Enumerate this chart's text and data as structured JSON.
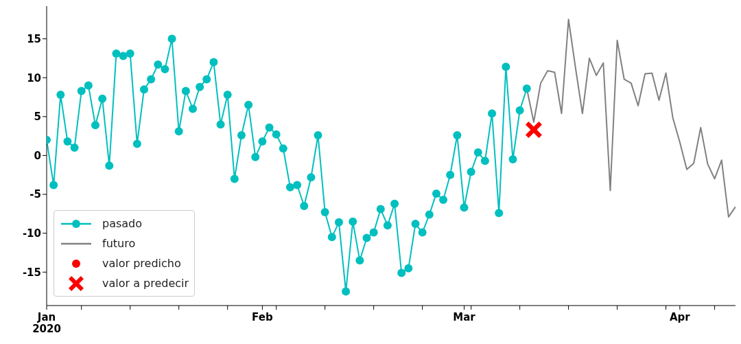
{
  "chart_data": {
    "type": "line",
    "xlim": [
      "2020-01-01",
      "2020-04-09"
    ],
    "xticks": [
      {
        "value": "2020-01-01",
        "label": "Jan\n2020"
      },
      {
        "value": "2020-01-06",
        "label": null
      },
      {
        "value": "2020-01-13",
        "label": null
      },
      {
        "value": "2020-01-20",
        "label": null
      },
      {
        "value": "2020-01-27",
        "label": null
      },
      {
        "value": "2020-02-01",
        "label": "Feb"
      },
      {
        "value": "2020-02-03",
        "label": null
      },
      {
        "value": "2020-02-10",
        "label": null
      },
      {
        "value": "2020-02-17",
        "label": null
      },
      {
        "value": "2020-02-24",
        "label": null
      },
      {
        "value": "2020-03-01",
        "label": "Mar"
      },
      {
        "value": "2020-03-02",
        "label": null
      },
      {
        "value": "2020-03-09",
        "label": null
      },
      {
        "value": "2020-03-16",
        "label": null
      },
      {
        "value": "2020-03-23",
        "label": null
      },
      {
        "value": "2020-03-30",
        "label": null
      },
      {
        "value": "2020-04-01",
        "label": "Apr"
      },
      {
        "value": "2020-04-06",
        "label": null
      }
    ],
    "ylim": [
      -19.3,
      19.2
    ],
    "yticks": [
      -15,
      -10,
      -5,
      0,
      5,
      10,
      15
    ],
    "grid": false,
    "legend": "bottom left",
    "series": [
      {
        "name": "pasado",
        "type": "line",
        "marker": "circle",
        "color": "#00bfbf",
        "x": [
          "2020-01-01",
          "2020-01-02",
          "2020-01-03",
          "2020-01-04",
          "2020-01-05",
          "2020-01-06",
          "2020-01-07",
          "2020-01-08",
          "2020-01-09",
          "2020-01-10",
          "2020-01-11",
          "2020-01-12",
          "2020-01-13",
          "2020-01-14",
          "2020-01-15",
          "2020-01-16",
          "2020-01-17",
          "2020-01-18",
          "2020-01-19",
          "2020-01-20",
          "2020-01-21",
          "2020-01-22",
          "2020-01-23",
          "2020-01-24",
          "2020-01-25",
          "2020-01-26",
          "2020-01-27",
          "2020-01-28",
          "2020-01-29",
          "2020-01-30",
          "2020-01-31",
          "2020-02-01",
          "2020-02-02",
          "2020-02-03",
          "2020-02-04",
          "2020-02-05",
          "2020-02-06",
          "2020-02-07",
          "2020-02-08",
          "2020-02-09",
          "2020-02-10",
          "2020-02-11",
          "2020-02-12",
          "2020-02-13",
          "2020-02-14",
          "2020-02-15",
          "2020-02-16",
          "2020-02-17",
          "2020-02-18",
          "2020-02-19",
          "2020-02-20",
          "2020-02-21",
          "2020-02-22",
          "2020-02-23",
          "2020-02-24",
          "2020-02-25",
          "2020-02-26",
          "2020-02-27",
          "2020-02-28",
          "2020-02-29",
          "2020-03-01",
          "2020-03-02",
          "2020-03-03",
          "2020-03-04",
          "2020-03-05",
          "2020-03-06",
          "2020-03-07",
          "2020-03-08",
          "2020-03-09",
          "2020-03-10"
        ],
        "values": [
          2.0,
          -3.8,
          7.8,
          1.8,
          1.0,
          8.3,
          9.0,
          3.9,
          7.3,
          -1.3,
          13.1,
          12.8,
          13.1,
          1.5,
          8.5,
          9.8,
          11.7,
          11.1,
          15.0,
          3.1,
          8.3,
          6.0,
          8.8,
          9.8,
          12.0,
          4.0,
          7.8,
          -3.0,
          2.6,
          6.5,
          -0.2,
          1.8,
          3.6,
          2.7,
          0.9,
          -4.1,
          -3.8,
          -6.5,
          -2.8,
          2.6,
          -7.3,
          -10.5,
          -8.6,
          -17.5,
          -8.5,
          -13.5,
          -10.6,
          -9.9,
          -6.9,
          -9.0,
          -6.2,
          -15.1,
          -14.5,
          -8.8,
          -9.9,
          -7.6,
          -4.9,
          -5.7,
          -2.5,
          2.6,
          -6.7,
          -2.1,
          0.4,
          -0.7,
          5.4,
          -7.4,
          11.4,
          -0.5,
          5.8,
          8.6
        ]
      },
      {
        "name": "futuro",
        "type": "line",
        "marker": "none",
        "color": "#808080",
        "x": [
          "2020-03-10",
          "2020-03-11",
          "2020-03-12",
          "2020-03-13",
          "2020-03-14",
          "2020-03-15",
          "2020-03-16",
          "2020-03-17",
          "2020-03-18",
          "2020-03-19",
          "2020-03-20",
          "2020-03-21",
          "2020-03-22",
          "2020-03-23",
          "2020-03-24",
          "2020-03-25",
          "2020-03-26",
          "2020-03-27",
          "2020-03-28",
          "2020-03-29",
          "2020-03-30",
          "2020-03-31",
          "2020-04-01",
          "2020-04-02",
          "2020-04-03",
          "2020-04-04",
          "2020-04-05",
          "2020-04-06",
          "2020-04-07",
          "2020-04-08",
          "2020-04-09"
        ],
        "values": [
          8.6,
          4.3,
          9.3,
          10.9,
          10.7,
          5.4,
          17.5,
          11.3,
          5.4,
          12.5,
          10.3,
          11.9,
          -4.5,
          14.8,
          9.8,
          9.3,
          6.4,
          10.5,
          10.6,
          7.1,
          10.6,
          4.8,
          1.7,
          -1.8,
          -1.0,
          3.6,
          -1.1,
          -3.0,
          -0.6,
          -7.9,
          -6.6
        ]
      },
      {
        "name": "valor predicho",
        "type": "scatter",
        "marker": "circle",
        "color": "#ff0000"
      },
      {
        "name": "valor a predecir",
        "type": "scatter",
        "marker": "cross",
        "color": "#ff0000",
        "x": [
          "2020-03-11"
        ],
        "values": [
          3.3
        ]
      }
    ]
  }
}
